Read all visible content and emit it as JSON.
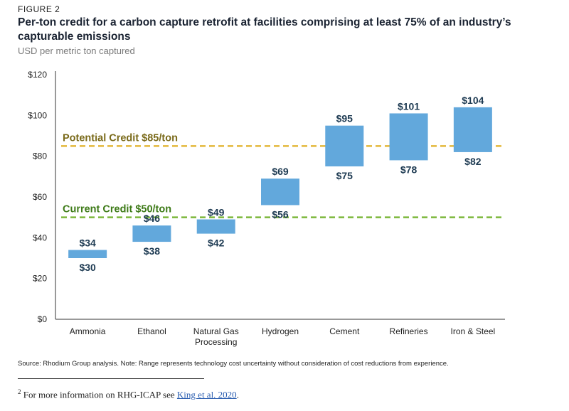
{
  "figure_label": "FIGURE 2",
  "chart_data": {
    "type": "range-bar",
    "title": "Per-ton credit for a carbon capture retrofit at facilities comprising at least 75% of an industry’s capturable emissions",
    "subtitle": "USD per metric ton captured",
    "ylim": [
      0,
      120
    ],
    "yticks": [
      0,
      20,
      40,
      60,
      80,
      100,
      120
    ],
    "ytick_labels": [
      "$0",
      "$20",
      "$40",
      "$60",
      "$80",
      "$100",
      "$120"
    ],
    "categories": [
      [
        "Ammonia"
      ],
      [
        "Ethanol"
      ],
      [
        "Natural Gas",
        "Processing"
      ],
      [
        "Hydrogen"
      ],
      [
        "Cement"
      ],
      [
        "Refineries"
      ],
      [
        "Iron & Steel"
      ]
    ],
    "low": [
      30,
      38,
      42,
      56,
      75,
      78,
      82
    ],
    "high": [
      34,
      46,
      49,
      69,
      95,
      101,
      104
    ],
    "low_labels": [
      "$30",
      "$38",
      "$42",
      "$56",
      "$75",
      "$78",
      "$82"
    ],
    "high_labels": [
      "$34",
      "$46",
      "$49",
      "$69",
      "$95",
      "$101",
      "$104"
    ],
    "bar_color": "#62a8dc",
    "reference_lines": [
      {
        "label": "Potential Credit $85/ton",
        "value": 85,
        "color": "#e3b83a",
        "label_color": "#7a6a1a"
      },
      {
        "label": "Current Credit $50/ton",
        "value": 50,
        "color": "#7cb83b",
        "label_color": "#3d7a17"
      }
    ]
  },
  "source_note": "Source: Rhodium Group analysis. Note: Range represents technology cost uncertainty without consideration of cost reductions from experience.",
  "footnote": {
    "marker": "2",
    "text": "For more information  on RHG-ICAP see ",
    "link_text": "King et al. 2020",
    "trailing": "."
  }
}
